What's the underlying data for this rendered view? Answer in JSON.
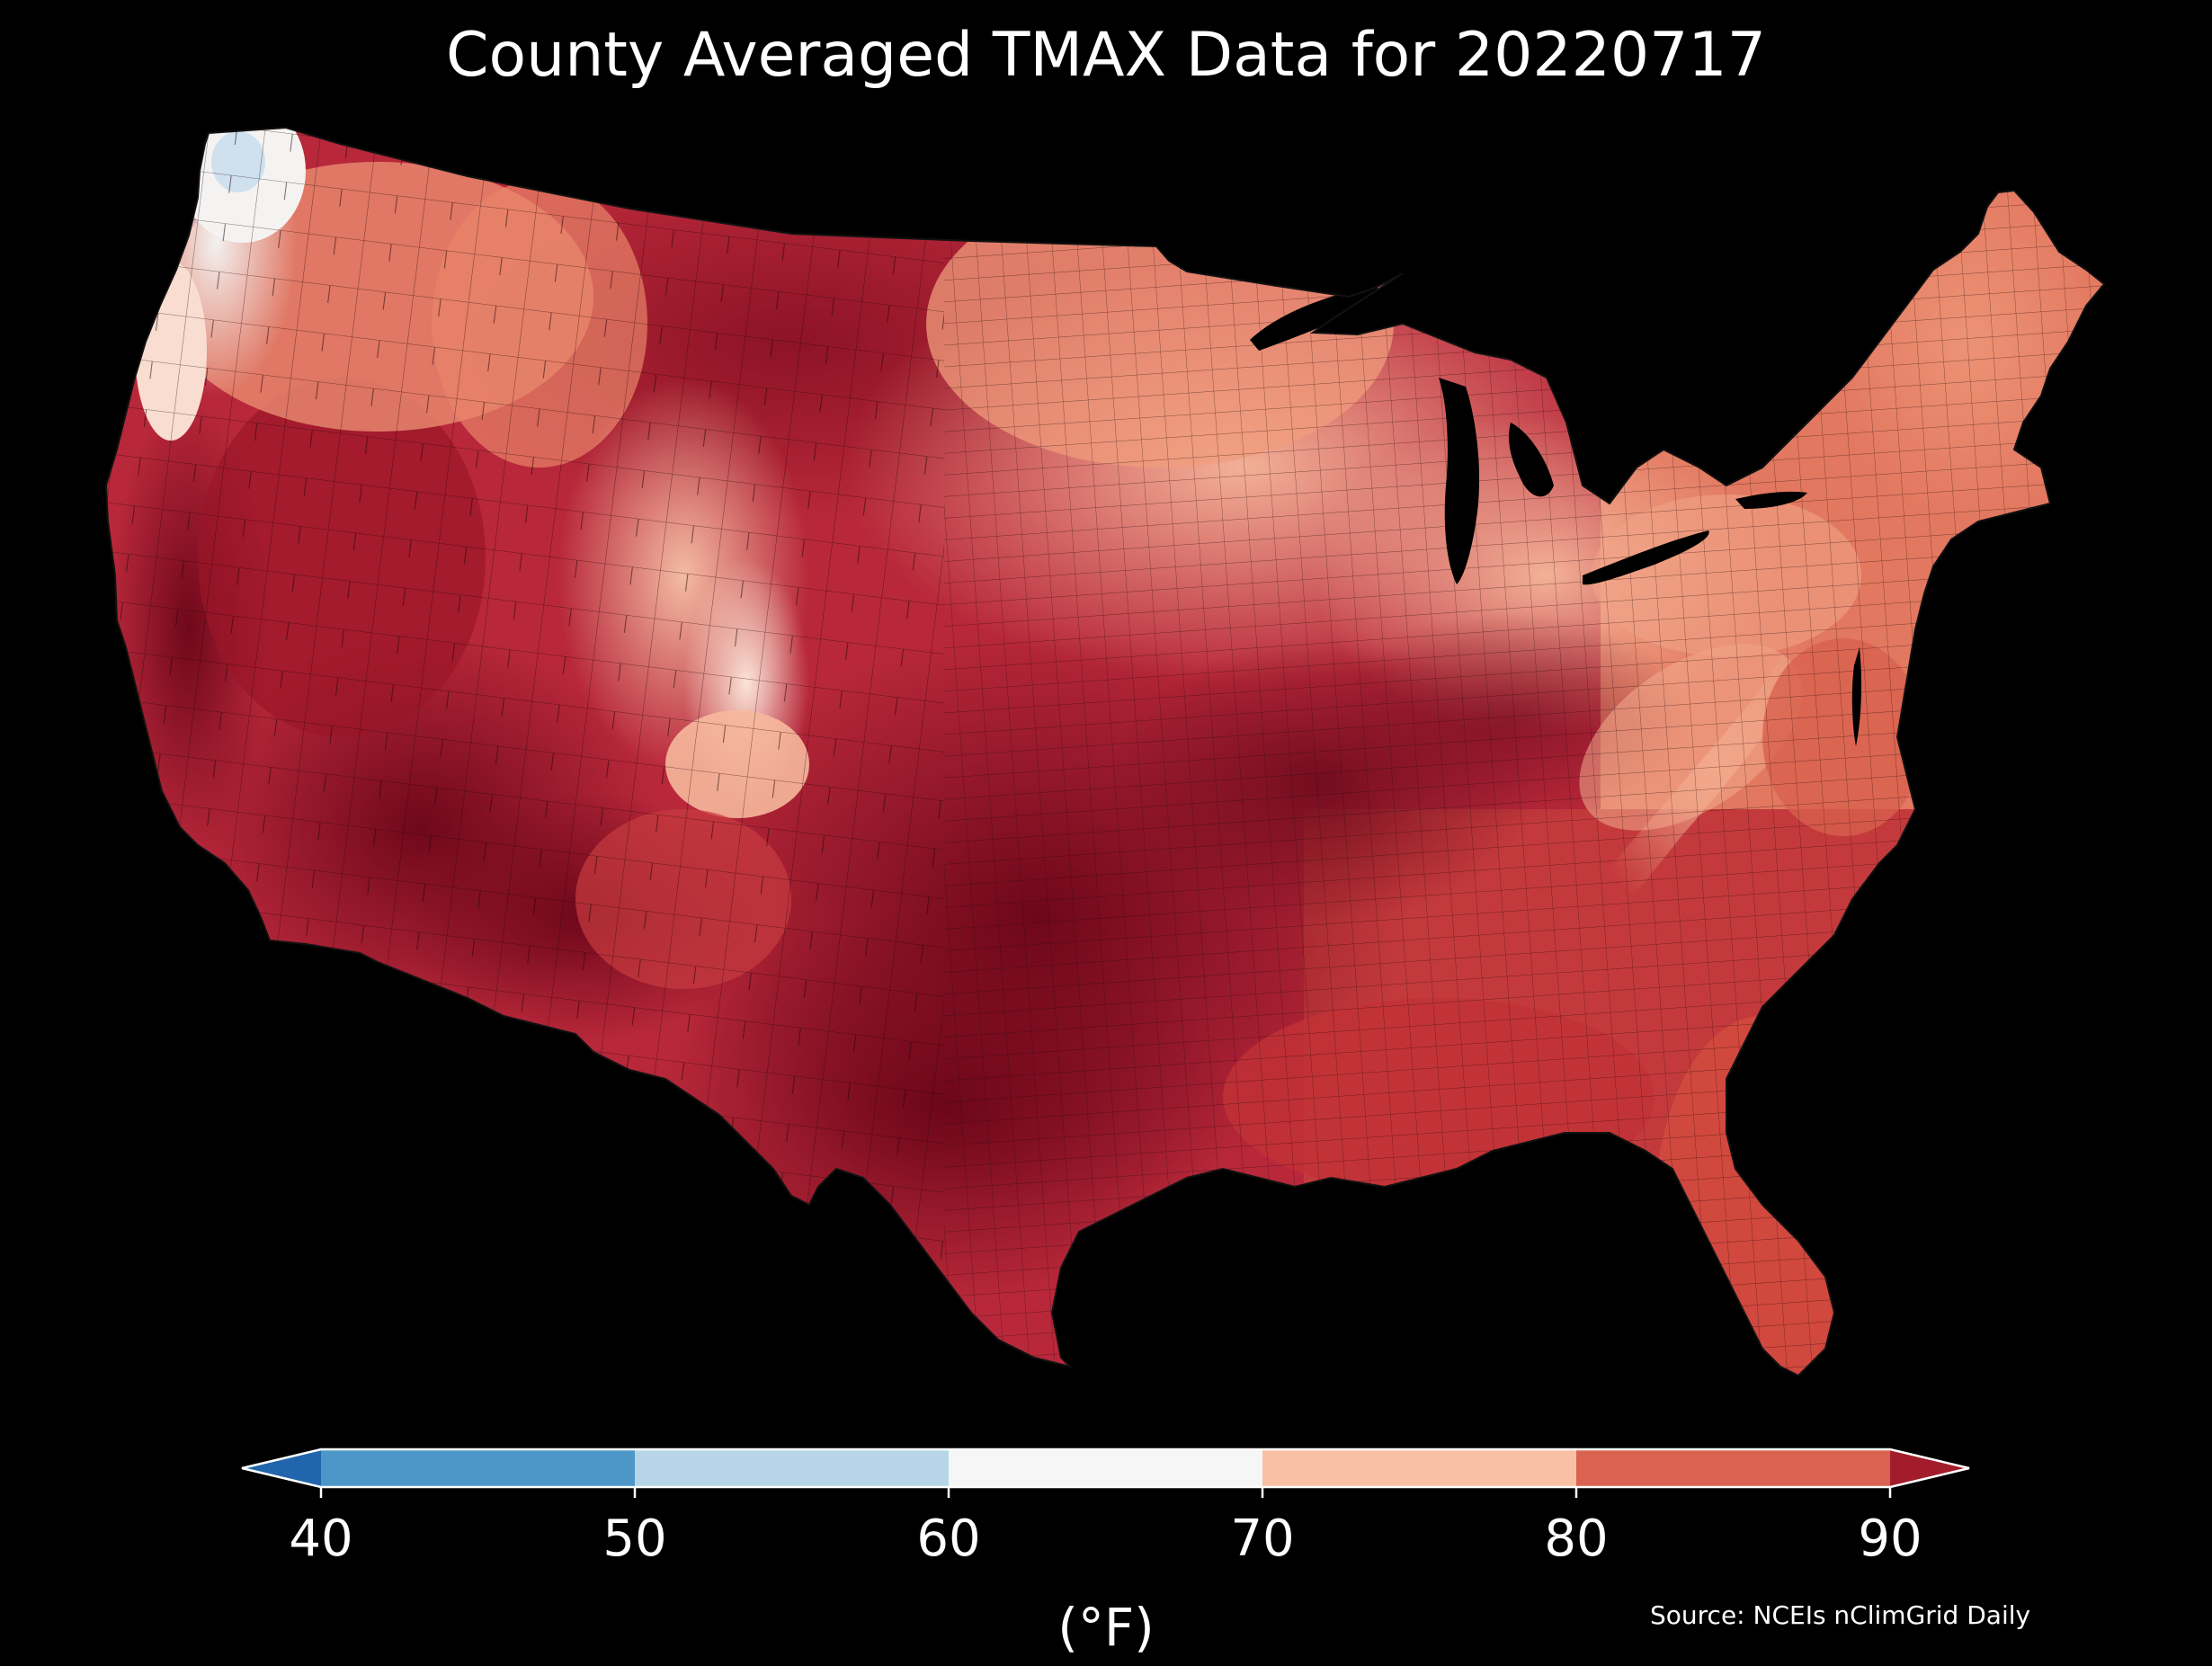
{
  "title": "County Averaged TMAX Data for 20220717",
  "source": "Source: NCEIs nClimGrid Daily",
  "colorbar": {
    "unit": "(°F)",
    "ticks": [
      "40",
      "50",
      "60",
      "70",
      "80",
      "90"
    ],
    "extend": "both",
    "bins": [
      {
        "range": "<40",
        "color": "#2166ac"
      },
      {
        "range": "40-50",
        "color": "#4d97c8"
      },
      {
        "range": "50-60",
        "color": "#b6d6e8"
      },
      {
        "range": "60-70",
        "color": "#f6f6f6"
      },
      {
        "range": "70-80",
        "color": "#f9c0a5"
      },
      {
        "range": "80-90",
        "color": "#d96350"
      },
      {
        "range": ">90",
        "color": "#a31c2c"
      }
    ]
  },
  "map": {
    "projection": "conic, contiguous United States",
    "background_color": "#000000",
    "border_color": "#000000",
    "regions": [
      {
        "name": "pacific-northwest-coast",
        "tmax_band": "50-70",
        "color": "#e8eef2"
      },
      {
        "name": "pacific-northwest-interior",
        "tmax_band": "70-80",
        "color": "#f2a688"
      },
      {
        "name": "northern-rockies-plains",
        "tmax_band": ">90",
        "color": "#8c1424"
      },
      {
        "name": "central-rockies",
        "tmax_band": "70-80",
        "color": "#f5b595"
      },
      {
        "name": "great-basin-southwest",
        "tmax_band": ">90",
        "color": "#7a0c20"
      },
      {
        "name": "california-valley",
        "tmax_band": ">90",
        "color": "#800e22"
      },
      {
        "name": "upper-midwest-great-lakes",
        "tmax_band": "70-80",
        "color": "#f4a98c"
      },
      {
        "name": "northeast",
        "tmax_band": "80-90",
        "color": "#e27860"
      },
      {
        "name": "southern-plains-texas",
        "tmax_band": ">90",
        "color": "#750a1e"
      },
      {
        "name": "ohio-valley",
        "tmax_band": ">90",
        "color": "#9a1a2a"
      },
      {
        "name": "appalachian-ridge",
        "tmax_band": "70-80",
        "color": "#f0a286"
      },
      {
        "name": "southeast-gulf",
        "tmax_band": "80-90",
        "color": "#c43a3c"
      },
      {
        "name": "florida",
        "tmax_band": "80-90",
        "color": "#d0483e"
      }
    ]
  }
}
